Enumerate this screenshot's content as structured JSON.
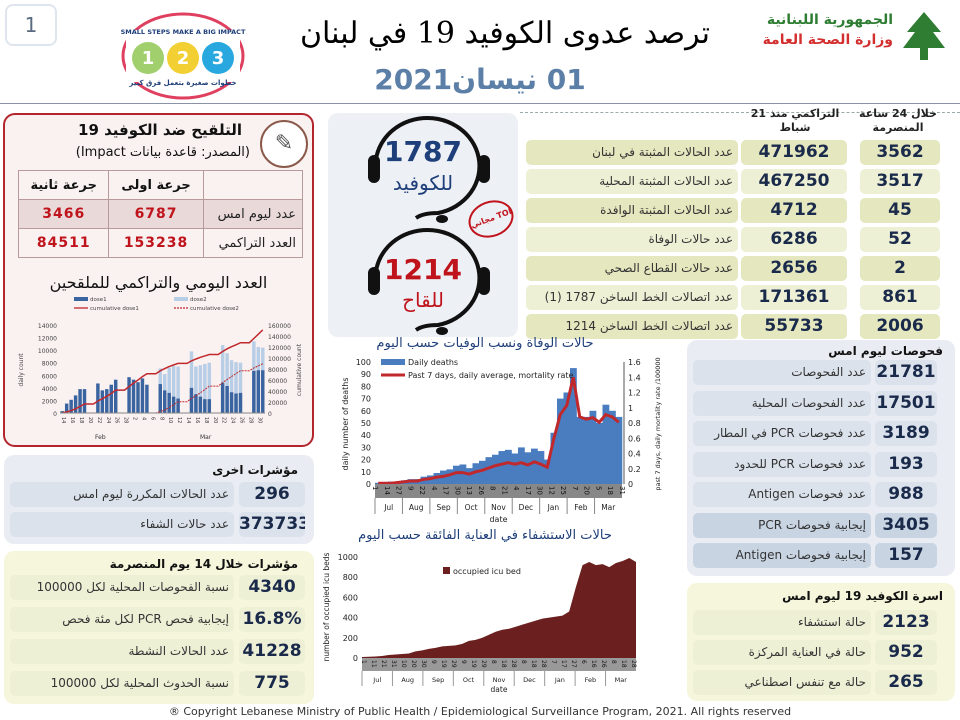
{
  "header": {
    "page_number": "1",
    "title": "ترصد عدوى الكوفيد 19 في لبنان",
    "date": "01 نيسان2021",
    "campaign_logo_text": [
      "SMALL STEPS MAKE A BIG IMPACT",
      "خطوات صغيرة بتعمل فرق كبير"
    ],
    "ministry_line1": "الجمهورية اللبنانية",
    "ministry_line2": "وزارة الصحة العامة"
  },
  "vaccination": {
    "title": "التلقيح ضد الكوفيد 19",
    "source": "(المصدر: قاعدة بيانات Impact)",
    "col_first_dose": "جرعة اولى",
    "col_second_dose": "جرعة ثانية",
    "rows": [
      {
        "label": "عدد ليوم امس",
        "first": "6787",
        "second": "3466"
      },
      {
        "label": "العدد التراكمي",
        "first": "153238",
        "second": "84511"
      }
    ],
    "chart_title": "العدد اليومي والتراكمي للملقحين"
  },
  "hotlines": {
    "covid_number": "1787",
    "covid_label": "للكوفيد",
    "vaccine_number": "1214",
    "vaccine_label": "للقاح",
    "stamp": "مجاني TOLL FREE"
  },
  "stats": {
    "header_24h": "خلال 24 ساعة المنصرمة",
    "header_cumulative": "التراكمي منذ 21 شباط",
    "rows": [
      {
        "label": "عدد الحالات المثبتة في لبنان",
        "cumulative": "471962",
        "last24": "3562"
      },
      {
        "label": "عدد الحالات المثبتة المحلية",
        "cumulative": "467250",
        "last24": "3517"
      },
      {
        "label": "عدد الحالات المثبتة الوافدة",
        "cumulative": "4712",
        "last24": "45"
      },
      {
        "label": "عدد حالات الوفاة",
        "cumulative": "6286",
        "last24": "52"
      },
      {
        "label": "عدد حالات القطاع الصحي",
        "cumulative": "2656",
        "last24": "2"
      },
      {
        "label": "عدد اتصالات الخط الساخن 1787 (1)",
        "cumulative": "171361",
        "last24": "861"
      },
      {
        "label": "عدد اتصالات الخط الساخن 1214",
        "cumulative": "55733",
        "last24": "2006"
      }
    ]
  },
  "tests": {
    "title": "فحوصات ليوم امس",
    "rows": [
      {
        "label": "عدد الفحوصات",
        "value": "21781"
      },
      {
        "label": "عدد الفحوصات المحلية",
        "value": "17501"
      },
      {
        "label": "عدد فحوصات PCR في المطار",
        "value": "3189"
      },
      {
        "label": "عدد فحوصات PCR للحدود",
        "value": "193"
      },
      {
        "label": "عدد فحوصات Antigen",
        "value": "988"
      },
      {
        "label": "إيجابية فحوصات PCR",
        "value": "3405"
      },
      {
        "label": "إيجابية فحوصات Antigen",
        "value": "157"
      }
    ]
  },
  "beds": {
    "title": "اسرة الكوفيد 19 ليوم امس",
    "rows": [
      {
        "label": "حالة استشفاء",
        "value": "2123"
      },
      {
        "label": "حالة في العناية المركزة",
        "value": "952"
      },
      {
        "label": "حالة مع تنفس اصطناعي",
        "value": "265"
      }
    ]
  },
  "other": {
    "title": "مؤشرات اخرى",
    "rows": [
      {
        "label": "عدد الحالات المكررة ليوم امس",
        "value": "296"
      },
      {
        "label": "عدد حالات الشفاء",
        "value": "373733"
      }
    ]
  },
  "fourteen": {
    "title": "مؤشرات خلال 14 يوم المنصرمة",
    "rows": [
      {
        "label": "نسبة الفحوصات المحلية لكل 100000",
        "value": "4340"
      },
      {
        "label": "إيجابية فحص PCR لكل مئة فحص",
        "value": "16.8%"
      },
      {
        "label": "عدد الحالات النشطة",
        "value": "41228"
      },
      {
        "label": "نسبة الحدوث المحلية لكل 100000",
        "value": "775"
      }
    ]
  },
  "copyright": "® Copyright Lebanese Ministry of Public Health / Epidemiological Surveillance Program, 2021. All rights reserved",
  "chart_data": [
    {
      "type": "bar",
      "title": "العدد اليومي والتراكمي للملقحين",
      "xlabel": "",
      "ylabel": "daily count",
      "y2label": "cumulative count",
      "ylim": [
        0,
        14000
      ],
      "y2lim": [
        0,
        160000
      ],
      "yticks": [
        "0",
        "2000",
        "4000",
        "6000",
        "8000",
        "10000",
        "12000",
        "14000"
      ],
      "y2ticks": [
        "0",
        "20000",
        "40000",
        "60000",
        "80000",
        "100000",
        "120000",
        "140000",
        "160000"
      ],
      "x_tick_labels": [
        "14",
        "16",
        "18",
        "20",
        "22",
        "24",
        "26",
        "28",
        "2",
        "4",
        "6",
        "8",
        "10",
        "12",
        "14",
        "16",
        "18",
        "20",
        "22",
        "24",
        "26",
        "28",
        "30"
      ],
      "month_labels": [
        "Feb",
        "Mar"
      ],
      "legend": [
        "dose1",
        "dose2",
        "cumulative dose1",
        "cumulative dose2"
      ],
      "series": [
        {
          "name": "dose1",
          "values": [
            300,
            1500,
            2100,
            2800,
            3800,
            3800,
            0,
            0,
            4700,
            3600,
            3800,
            4500,
            5300,
            0,
            0,
            5700,
            5300,
            4900,
            5500,
            4500,
            0,
            0,
            4600,
            3600,
            3200,
            2600,
            2300,
            0,
            0,
            4000,
            3000,
            2600,
            2200,
            2200,
            0,
            0,
            4800,
            4300,
            3300,
            3100,
            3200,
            0,
            0,
            6700,
            6800,
            6800
          ]
        },
        {
          "name": "dose2",
          "values": [
            0,
            0,
            0,
            0,
            0,
            0,
            0,
            0,
            0,
            0,
            0,
            0,
            0,
            0,
            0,
            0,
            0,
            0,
            0,
            0,
            0,
            0,
            2500,
            2600,
            4000,
            4900,
            5100,
            0,
            0,
            5800,
            4400,
            5000,
            5600,
            5800,
            0,
            0,
            6000,
            5200,
            5100,
            5000,
            4800,
            0,
            0,
            4700,
            3700,
            3600
          ]
        }
      ]
    },
    {
      "type": "bar",
      "title": "حالات الوفاة ونسب الوفيات حسب اليوم",
      "xlabel": "date",
      "ylabel": "daily number of deaths",
      "y2label": "past 7 days, daily mortality rate /100000",
      "ylim": [
        0,
        100
      ],
      "y2lim": [
        0,
        1.6
      ],
      "yticks": [
        "0",
        "10",
        "20",
        "30",
        "40",
        "50",
        "60",
        "70",
        "80",
        "90",
        "100"
      ],
      "y2ticks": [
        "0",
        "0.2",
        "0.4",
        "0.6",
        "0.8",
        "1",
        "1.2",
        "1.4",
        "1.6"
      ],
      "x_tick_labels": [
        "1",
        "14",
        "27",
        "9",
        "22",
        "4",
        "17",
        "30",
        "13",
        "26",
        "8",
        "21",
        "4",
        "17",
        "30",
        "12",
        "25",
        "7",
        "20",
        "5",
        "18",
        "31"
      ],
      "month_labels": [
        "Jul",
        "Aug",
        "Sep",
        "Oct",
        "Nov",
        "Dec",
        "Jan",
        "Feb",
        "Mar"
      ],
      "legend": [
        "Daily deaths",
        "Past 7 days, daily average, mortality rate"
      ],
      "series": [
        {
          "name": "Daily deaths",
          "values": [
            1,
            1,
            2,
            2,
            3,
            4,
            4,
            6,
            7,
            9,
            11,
            12,
            15,
            16,
            13,
            17,
            19,
            22,
            24,
            27,
            28,
            25,
            30,
            26,
            29,
            27,
            20,
            42,
            70,
            75,
            95,
            55,
            55,
            60,
            50,
            65,
            60,
            55
          ]
        },
        {
          "name": "Past 7 days, daily average, mortality rate",
          "values": [
            0.01,
            0.01,
            0.01,
            0.02,
            0.03,
            0.04,
            0.04,
            0.06,
            0.07,
            0.09,
            0.1,
            0.12,
            0.15,
            0.15,
            0.13,
            0.16,
            0.18,
            0.21,
            0.24,
            0.26,
            0.28,
            0.26,
            0.28,
            0.25,
            0.29,
            0.26,
            0.22,
            0.59,
            0.91,
            1.03,
            1.4,
            0.88,
            0.85,
            0.87,
            0.81,
            0.91,
            0.88,
            0.81
          ]
        }
      ]
    },
    {
      "type": "area",
      "title": "حالات الاستشفاء في العناية الفائقة حسب اليوم",
      "xlabel": "date",
      "ylabel": "number of occupied icu beds",
      "ylim": [
        0,
        1000
      ],
      "yticks": [
        "0",
        "200",
        "400",
        "600",
        "800",
        "1000"
      ],
      "x_tick_labels": [
        "1",
        "11",
        "21",
        "31",
        "10",
        "20",
        "30",
        "9",
        "19",
        "29",
        "9",
        "19",
        "29",
        "8",
        "18",
        "28",
        "8",
        "18",
        "28",
        "7",
        "17",
        "27",
        "6",
        "16",
        "26",
        "8",
        "18",
        "28"
      ],
      "month_labels": [
        "Jul",
        "Aug",
        "Sep",
        "Oct",
        "Nov",
        "Dec",
        "Jan",
        "Feb",
        "Mar"
      ],
      "legend": [
        "occupied icu bed"
      ],
      "series": [
        {
          "name": "occupied icu bed",
          "values": [
            10,
            12,
            15,
            20,
            30,
            35,
            40,
            45,
            65,
            75,
            90,
            100,
            115,
            120,
            125,
            140,
            170,
            180,
            200,
            230,
            260,
            280,
            290,
            310,
            330,
            350,
            370,
            390,
            400,
            410,
            420,
            460,
            700,
            920,
            950,
            920,
            930,
            900,
            940,
            960,
            990,
            950
          ]
        }
      ]
    }
  ],
  "colors": {
    "navy": "#1a2a4a",
    "red": "#c0141c",
    "dose1": "#3a64a0",
    "dose2": "#b8cde6",
    "deaths": "#4a7cc0",
    "rate": "#c0282c",
    "icu": "#6b1f1f"
  }
}
